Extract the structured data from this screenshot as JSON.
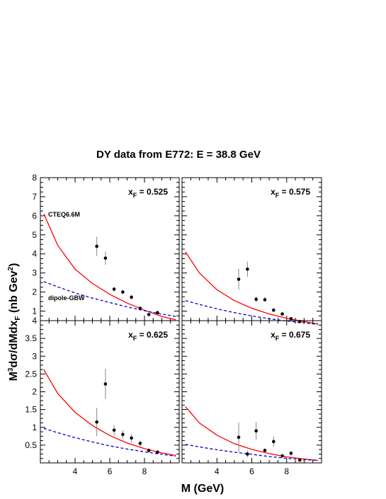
{
  "figure": {
    "title": "DY data from E772: E = 38.8 GeV",
    "xlabel": "M (GeV)",
    "ylabel": "M³dσ/dMdx_F (nb Gev²)"
  },
  "colors": {
    "cteq": "#ff0000",
    "dipole": "#0000cc",
    "data": "#000000"
  },
  "chart_data": [
    {
      "type": "scatter",
      "panel_label": "x_F = 0.525",
      "xlim": [
        2,
        10
      ],
      "ylim": [
        0.5,
        8
      ],
      "xticks": [
        4,
        6,
        8
      ],
      "yticks": [
        1,
        2,
        3,
        4,
        5,
        6,
        7,
        8
      ],
      "annotations": [
        "CTEQ6.6M",
        "dipole-GBW"
      ],
      "data": {
        "x": [
          5.25,
          5.75,
          6.25,
          6.75,
          7.25,
          7.75,
          8.25,
          8.75
        ],
        "y": [
          4.4,
          3.78,
          2.15,
          2.0,
          1.73,
          1.15,
          0.82,
          0.92
        ],
        "err": [
          0.5,
          0.35,
          0.12,
          0.1,
          0.12,
          0.08,
          0.05,
          0.05
        ]
      },
      "series": [
        {
          "x": [
            2.2,
            3.0,
            4.0,
            5.0,
            6.0,
            7.0,
            8.0,
            9.0,
            9.8
          ],
          "values": [
            6.1,
            4.45,
            3.2,
            2.45,
            1.88,
            1.42,
            1.05,
            0.72,
            0.55
          ]
        },
        {
          "x": [
            2.2,
            3.0,
            4.0,
            5.0,
            6.0,
            7.0,
            8.0,
            9.0,
            9.8
          ],
          "values": [
            2.55,
            2.27,
            1.95,
            1.68,
            1.45,
            1.22,
            1.02,
            0.84,
            0.72
          ]
        }
      ]
    },
    {
      "type": "scatter",
      "panel_label": "x_F = 0.575",
      "xlim": [
        2,
        10
      ],
      "ylim": [
        0.5,
        8
      ],
      "xticks": [
        4,
        6,
        8
      ],
      "yticks": [
        1,
        2,
        3,
        4,
        5,
        6,
        7,
        8
      ],
      "annotations": [],
      "data": {
        "x": [
          5.25,
          5.75,
          6.25,
          6.75,
          7.25,
          7.75,
          8.25,
          8.75
        ],
        "y": [
          2.67,
          3.2,
          1.62,
          1.6,
          1.05,
          0.85,
          0.6,
          0.45
        ],
        "err": [
          0.55,
          0.4,
          0.15,
          0.12,
          0.1,
          0.06,
          0.05,
          0.04
        ]
      },
      "series": [
        {
          "x": [
            2.2,
            3.0,
            4.0,
            5.0,
            6.0,
            7.0,
            8.0,
            9.0,
            9.8
          ],
          "values": [
            4.1,
            3.0,
            2.12,
            1.55,
            1.15,
            0.85,
            0.62,
            0.45,
            0.33
          ]
        },
        {
          "x": [
            2.2,
            3.0,
            4.0,
            5.0,
            6.0,
            7.0,
            8.0,
            9.0,
            9.8
          ],
          "values": [
            1.55,
            1.35,
            1.12,
            0.92,
            0.75,
            0.6,
            0.48,
            0.38,
            0.3
          ]
        }
      ]
    },
    {
      "type": "scatter",
      "panel_label": "x_F = 0.625",
      "xlim": [
        2,
        10
      ],
      "ylim": [
        0,
        4
      ],
      "xticks": [
        4,
        6,
        8
      ],
      "yticks": [
        0.5,
        1,
        1.5,
        2,
        2.5,
        3,
        3.5,
        4
      ],
      "annotations": [],
      "data": {
        "x": [
          5.25,
          5.75,
          6.25,
          6.75,
          7.25,
          7.75,
          8.25,
          8.75
        ],
        "y": [
          1.15,
          2.22,
          0.92,
          0.8,
          0.7,
          0.55,
          0.35,
          0.3
        ],
        "err": [
          0.4,
          0.42,
          0.15,
          0.12,
          0.12,
          0.08,
          0.06,
          0.06
        ]
      },
      "series": [
        {
          "x": [
            2.2,
            3.0,
            4.0,
            5.0,
            6.0,
            7.0,
            8.0,
            9.0,
            9.8
          ],
          "values": [
            2.62,
            1.95,
            1.42,
            1.05,
            0.77,
            0.56,
            0.4,
            0.28,
            0.21
          ]
        },
        {
          "x": [
            2.2,
            3.0,
            4.0,
            5.0,
            6.0,
            7.0,
            8.0,
            9.0,
            9.8
          ],
          "values": [
            0.97,
            0.85,
            0.71,
            0.59,
            0.48,
            0.39,
            0.31,
            0.24,
            0.19
          ]
        }
      ]
    },
    {
      "type": "scatter",
      "panel_label": "x_F = 0.675",
      "xlim": [
        2,
        10
      ],
      "ylim": [
        0,
        4
      ],
      "xticks": [
        4,
        6,
        8
      ],
      "yticks": [
        0.5,
        1,
        1.5,
        2,
        2.5,
        3,
        3.5,
        4
      ],
      "annotations": [],
      "data": {
        "x": [
          5.25,
          5.75,
          6.25,
          6.75,
          7.25,
          7.75,
          8.25,
          8.75
        ],
        "y": [
          0.72,
          0.25,
          0.9,
          0.35,
          0.6,
          0.2,
          0.27,
          0.08
        ],
        "err": [
          0.42,
          0.1,
          0.25,
          0.06,
          0.15,
          0.04,
          0.06,
          0.03
        ]
      },
      "series": [
        {
          "x": [
            2.2,
            3.0,
            4.0,
            5.0,
            6.0,
            7.0,
            8.0,
            9.0,
            9.8
          ],
          "values": [
            1.58,
            1.12,
            0.78,
            0.54,
            0.38,
            0.26,
            0.17,
            0.11,
            0.07
          ]
        },
        {
          "x": [
            2.2,
            3.0,
            4.0,
            5.0,
            6.0,
            7.0,
            8.0,
            9.0,
            9.8
          ],
          "values": [
            0.52,
            0.45,
            0.37,
            0.3,
            0.24,
            0.18,
            0.13,
            0.09,
            0.07
          ]
        }
      ]
    }
  ]
}
